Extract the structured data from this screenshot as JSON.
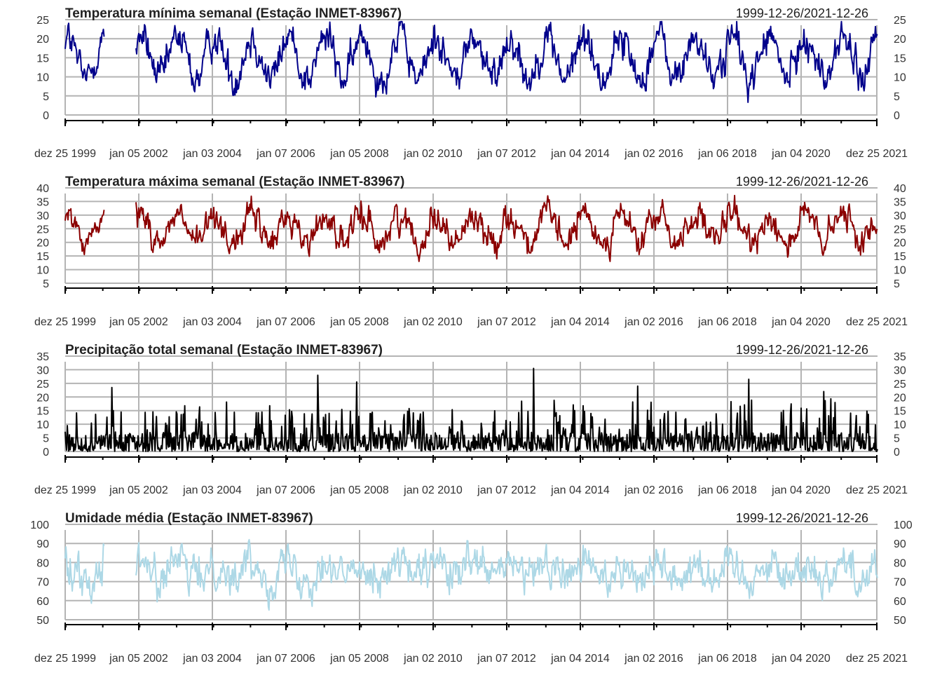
{
  "chart_data": [
    {
      "type": "line",
      "title": "Temperatura mínima semanal (Estação INMET-83967)",
      "date_range": "1999-12-26/2021-12-26",
      "ylim": [
        0,
        25
      ],
      "yticks": [
        0,
        5,
        10,
        15,
        20,
        25
      ],
      "x_tick_labels": [
        "dez 25 1999",
        "jan 05 2002",
        "jan 03 2004",
        "jan 07 2006",
        "jan 05 2008",
        "jan 02 2010",
        "jan 07 2012",
        "jan 04 2014",
        "jan 02 2016",
        "jan 06 2018",
        "jan 04 2020",
        "dez 25 2021"
      ],
      "grid": true,
      "color": "#00008b",
      "seasonal": {
        "mean": 15,
        "amplitude": 5.5,
        "noise": 2.6,
        "min": 3,
        "max": 24.5
      },
      "gap": {
        "from": "2001-01-15",
        "to": "2001-11-20"
      },
      "series": []
    },
    {
      "type": "line",
      "title": "Temperatura máxima semanal (Estação INMET-83967)",
      "date_range": "1999-12-26/2021-12-26",
      "ylim": [
        5,
        40
      ],
      "yticks": [
        5,
        10,
        15,
        20,
        25,
        30,
        35,
        40
      ],
      "x_tick_labels": [
        "dez 25 1999",
        "jan 05 2002",
        "jan 03 2004",
        "jan 07 2006",
        "jan 05 2008",
        "jan 02 2010",
        "jan 07 2012",
        "jan 04 2014",
        "jan 02 2016",
        "jan 06 2018",
        "jan 04 2020",
        "dez 25 2021"
      ],
      "grid": true,
      "color": "#8b0000",
      "seasonal": {
        "mean": 25,
        "amplitude": 5,
        "noise": 3,
        "min": 13,
        "max": 38
      },
      "gap": {
        "from": "2001-01-15",
        "to": "2001-11-20"
      },
      "series": []
    },
    {
      "type": "line",
      "title": "Precipitação total semanal (Estação INMET-83967)",
      "date_range": "1999-12-26/2021-12-26",
      "ylim": [
        0,
        35
      ],
      "yticks": [
        0,
        5,
        10,
        15,
        20,
        25,
        30,
        35
      ],
      "x_tick_labels": [
        "dez 25 1999",
        "jan 05 2002",
        "jan 03 2004",
        "jan 07 2006",
        "jan 05 2008",
        "jan 02 2010",
        "jan 07 2012",
        "jan 04 2014",
        "jan 02 2016",
        "jan 06 2018",
        "jan 04 2020",
        "dez 25 2021"
      ],
      "grid": true,
      "color": "#000000",
      "spikes": true,
      "peaks": [
        {
          "date": "2001-04-01",
          "value": 23.5
        },
        {
          "date": "2006-11-01",
          "value": 28
        },
        {
          "date": "2007-11-15",
          "value": 25.5
        },
        {
          "date": "2012-09-01",
          "value": 30.5
        },
        {
          "date": "2015-07-01",
          "value": 24
        },
        {
          "date": "2018-07-01",
          "value": 26.5
        },
        {
          "date": "2020-07-15",
          "value": 22
        }
      ],
      "series": []
    },
    {
      "type": "line",
      "title": "Umidade média (Estação INMET-83967)",
      "date_range": "1999-12-26/2021-12-26",
      "ylim": [
        50,
        100
      ],
      "yticks": [
        50,
        60,
        70,
        80,
        90,
        100
      ],
      "x_tick_labels": [
        "dez 25 1999",
        "jan 05 2002",
        "jan 03 2004",
        "jan 07 2006",
        "jan 05 2008",
        "jan 02 2010",
        "jan 07 2012",
        "jan 04 2014",
        "jan 02 2016",
        "jan 06 2018",
        "jan 04 2020",
        "dez 25 2021"
      ],
      "grid": true,
      "color": "#add8e6",
      "seasonal": {
        "mean": 76,
        "amplitude": 4,
        "noise": 5.5,
        "min": 54,
        "max": 92
      },
      "gap": {
        "from": "2001-01-15",
        "to": "2001-11-20"
      },
      "series": []
    }
  ]
}
